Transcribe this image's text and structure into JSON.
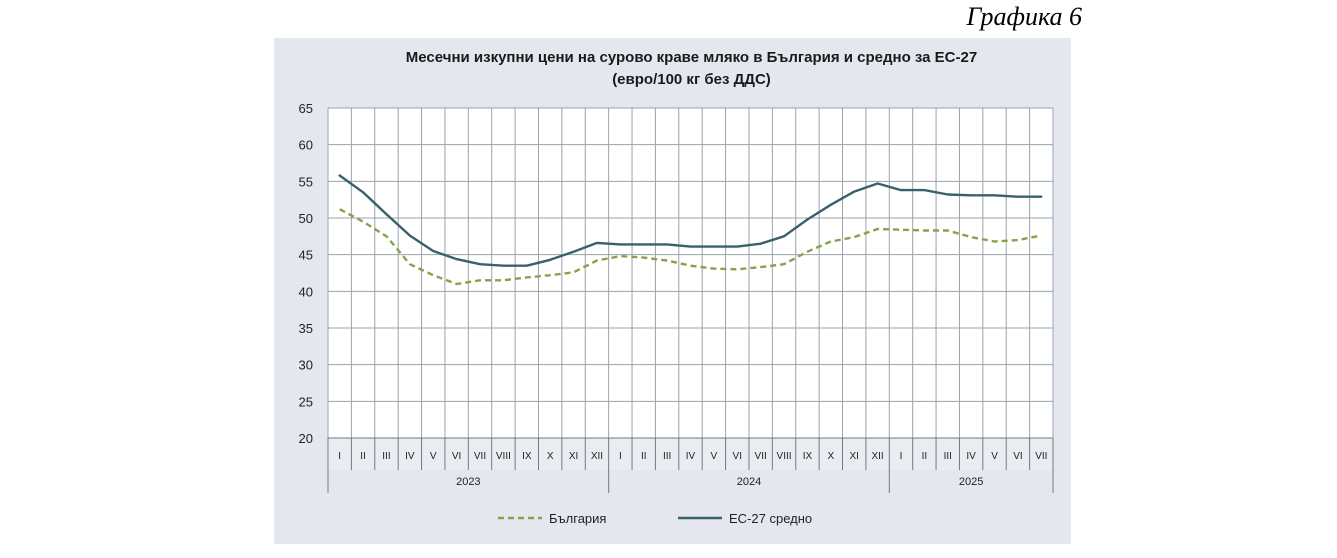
{
  "figure_label": "Графика 6",
  "chart_data": {
    "type": "line",
    "title_line1": "Месечни изкупни цени на сурово краве мляко в България и средно за ЕС-27",
    "title_line2": "(евро/100 кг без ДДС)",
    "ylim": [
      20,
      65
    ],
    "yticks": [
      "20",
      "25",
      "30",
      "35",
      "40",
      "45",
      "50",
      "55",
      "60",
      "65"
    ],
    "grid": true,
    "legend_position": "bottom",
    "categories": [
      "I",
      "II",
      "III",
      "IV",
      "V",
      "VI",
      "VII",
      "VIII",
      "IX",
      "X",
      "XI",
      "XII",
      "I",
      "II",
      "III",
      "IV",
      "V",
      "VI",
      "VII",
      "VIII",
      "IX",
      "X",
      "XI",
      "XII",
      "I",
      "II",
      "III",
      "IV",
      "V",
      "VI",
      "VII"
    ],
    "years": [
      {
        "label": "2023",
        "months": 12
      },
      {
        "label": "2024",
        "months": 12
      },
      {
        "label": "2025",
        "months": 7
      }
    ],
    "series": [
      {
        "name": "България",
        "color": "#8aa04a",
        "style": "dashed",
        "values": [
          51.2,
          49.5,
          47.5,
          43.7,
          42.2,
          41.0,
          41.5,
          41.5,
          41.9,
          42.2,
          42.6,
          44.2,
          44.8,
          44.6,
          44.2,
          43.5,
          43.1,
          43.0,
          43.3,
          43.7,
          45.4,
          46.8,
          47.4,
          48.5,
          48.4,
          48.3,
          48.3,
          47.4,
          46.8,
          47.0,
          47.6
        ]
      },
      {
        "name": "ЕС-27 средно",
        "color": "#3c5f6d",
        "style": "solid",
        "values": [
          55.8,
          53.5,
          50.5,
          47.6,
          45.5,
          44.4,
          43.7,
          43.5,
          43.5,
          44.3,
          45.4,
          46.6,
          46.4,
          46.4,
          46.4,
          46.1,
          46.1,
          46.1,
          46.5,
          47.5,
          49.8,
          51.8,
          53.6,
          54.7,
          53.8,
          53.8,
          53.2,
          53.1,
          53.1,
          52.9,
          52.9
        ]
      }
    ]
  }
}
